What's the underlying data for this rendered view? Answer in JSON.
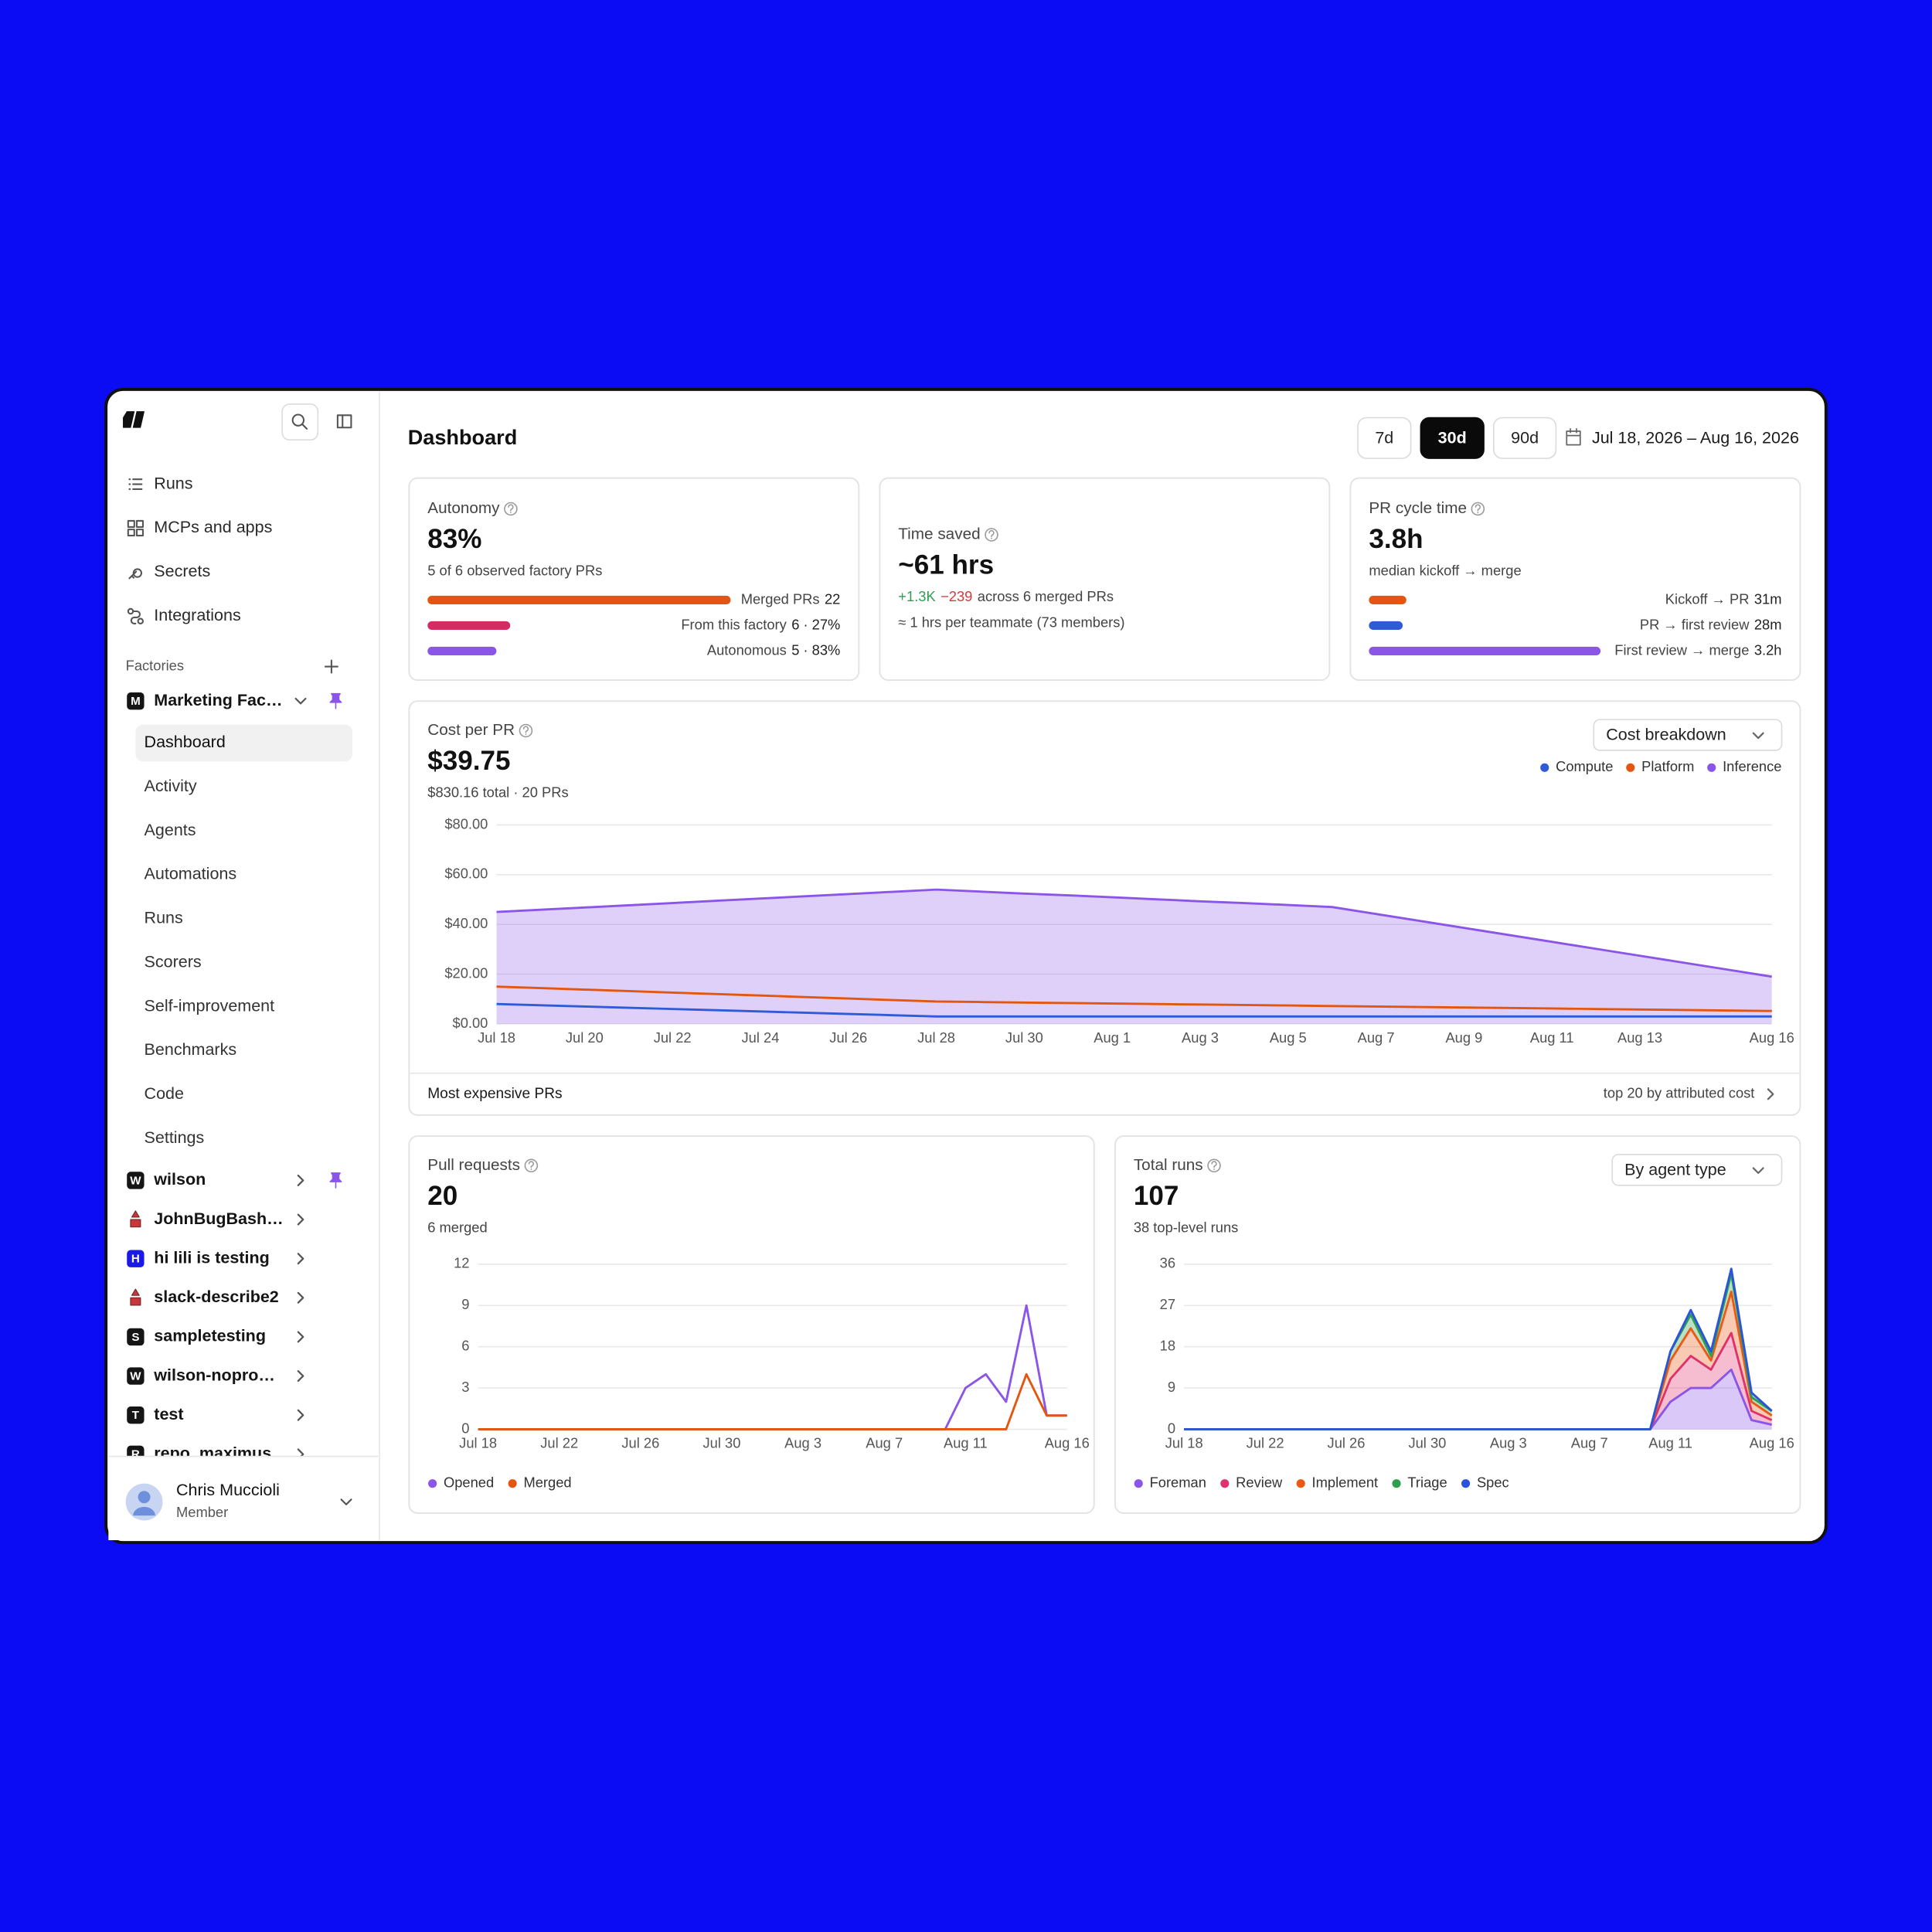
{
  "sidebar": {
    "nav": [
      "Runs",
      "MCPs and apps",
      "Secrets",
      "Integrations"
    ],
    "section": "Factories",
    "factories": [
      {
        "name": "Marketing Fac…",
        "badge": "M",
        "pinned": true,
        "expanded": true,
        "items": [
          "Dashboard",
          "Activity",
          "Agents",
          "Automations",
          "Runs",
          "Scorers",
          "Self-improvement",
          "Benchmarks",
          "Code",
          "Settings"
        ],
        "active_item": 0
      },
      {
        "name": "wilson",
        "badge": "W",
        "pinned": true
      },
      {
        "name": "JohnBugBash…"
      },
      {
        "name": "hi lili is testing",
        "badge": "H",
        "badge_color": "#1a1ae6"
      },
      {
        "name": "slack-describe2"
      },
      {
        "name": "sampletesting",
        "badge": "S"
      },
      {
        "name": "wilson-nopro…",
        "badge": "W"
      },
      {
        "name": "test",
        "badge": "T"
      },
      {
        "name": "repo_maximus",
        "badge": "R"
      }
    ],
    "user": {
      "name": "Chris Muccioli",
      "role": "Member"
    }
  },
  "header": {
    "title": "Dashboard",
    "ranges": [
      "7d",
      "30d",
      "90d"
    ],
    "active_range": 1,
    "date_range": "Jul 18, 2026 – Aug 16, 2026"
  },
  "cards": [
    {
      "title": "Autonomy",
      "value": "83%",
      "subtitle": "5 of 6 observed factory PRs",
      "bars": [
        {
          "label": "Merged PRs",
          "value": 22,
          "color": "#e4560f"
        },
        {
          "label": "From this factory",
          "value": 6,
          "value_label": "6 · 27%",
          "color": "#d62b62"
        },
        {
          "label": "Autonomous",
          "value": 5,
          "value_label": "5 · 83%",
          "color": "#8b55e8"
        }
      ]
    },
    {
      "title": "Time saved",
      "value": "~61 hrs",
      "delta_up": "+1.3K",
      "delta_down": "−239",
      "detail": "across 6 merged PRs",
      "note": "≈ 1 hrs per teammate (73 members)"
    },
    {
      "title": "PR cycle time",
      "value": "3.8h",
      "subtitle": "median kickoff → merge",
      "bars": [
        {
          "label": "Kickoff → PR",
          "value": 31,
          "value_label": "31m",
          "color": "#e4560f"
        },
        {
          "label": "PR → first review",
          "value": 28,
          "value_label": "28m",
          "color": "#2f5bd9"
        },
        {
          "label": "First review → merge",
          "value": 192,
          "value_label": "3.2h",
          "color": "#8b55e8"
        }
      ]
    }
  ],
  "chart_data": [
    {
      "type": "area",
      "title": "Cost per PR",
      "value": "$39.75",
      "subtitle": "$830.16 total · 20 PRs",
      "control": "Cost breakdown",
      "legend": "top-right",
      "grid": true,
      "categories": [
        "Jul 18",
        null,
        "Jul 20",
        null,
        "Jul 22",
        null,
        "Jul 24",
        null,
        "Jul 26",
        null,
        "Jul 28",
        null,
        "Jul 30",
        null,
        "Aug 1",
        null,
        "Aug 3",
        null,
        "Aug 5",
        null,
        "Aug 7",
        null,
        "Aug 9",
        null,
        "Aug 11",
        null,
        "Aug 13",
        null,
        null,
        "Aug 16"
      ],
      "series": [
        {
          "name": "Compute",
          "color": "#2f5bd9",
          "values": [
            8,
            7.5,
            7,
            6.5,
            6,
            5.5,
            5,
            4.5,
            4,
            3.5,
            3,
            3,
            3,
            3,
            3,
            3,
            3,
            3,
            3,
            3,
            3,
            3,
            3,
            3,
            3,
            3,
            3,
            3,
            3,
            3
          ]
        },
        {
          "name": "Platform",
          "color": "#e4560f",
          "values": [
            15,
            14.4,
            13.8,
            13.2,
            12.6,
            12,
            11.4,
            10.8,
            10.2,
            9.6,
            9,
            8.8,
            8.6,
            8.4,
            8.2,
            8,
            7.8,
            7.6,
            7.4,
            7.2,
            7,
            6.8,
            6.6,
            6.4,
            6.2,
            6,
            5.8,
            5.6,
            5.4,
            5.2
          ]
        },
        {
          "name": "Inference",
          "color": "#8b55e8",
          "values": [
            45,
            45.9,
            46.8,
            47.7,
            48.6,
            49.5,
            50.4,
            51.3,
            52.2,
            53.1,
            54,
            53.2,
            52.4,
            51.7,
            50.9,
            50.1,
            49.3,
            48.6,
            47.8,
            47,
            44.2,
            41.4,
            38.6,
            35.8,
            33,
            30.2,
            27.4,
            24.6,
            21.8,
            19
          ]
        }
      ],
      "ylim": [
        0,
        80
      ],
      "yticks": [
        {
          "value": 0,
          "label": "$0.00"
        },
        {
          "value": 20,
          "label": "$20.00"
        },
        {
          "value": 40,
          "label": "$40.00"
        },
        {
          "value": 60,
          "label": "$60.00"
        },
        {
          "value": 80,
          "label": "$80.00"
        }
      ],
      "footer": {
        "title": "Most expensive PRs",
        "link": "top 20 by attributed cost"
      }
    },
    {
      "type": "line",
      "title": "Pull requests",
      "value": "20",
      "subtitle": "6 merged",
      "legend": "bottom",
      "grid": true,
      "categories": [
        "Jul 18",
        null,
        null,
        null,
        "Jul 22",
        null,
        null,
        null,
        "Jul 26",
        null,
        null,
        null,
        "Jul 30",
        null,
        null,
        null,
        "Aug 3",
        null,
        null,
        null,
        "Aug 7",
        null,
        null,
        null,
        "Aug 11",
        null,
        null,
        null,
        null,
        "Aug 16"
      ],
      "series": [
        {
          "name": "Opened",
          "color": "#8b55e8",
          "values": [
            0,
            0,
            0,
            0,
            0,
            0,
            0,
            0,
            0,
            0,
            0,
            0,
            0,
            0,
            0,
            0,
            0,
            0,
            0,
            0,
            0,
            0,
            0,
            0,
            3,
            4,
            2,
            9,
            1,
            1
          ]
        },
        {
          "name": "Merged",
          "color": "#e4560f",
          "values": [
            0,
            0,
            0,
            0,
            0,
            0,
            0,
            0,
            0,
            0,
            0,
            0,
            0,
            0,
            0,
            0,
            0,
            0,
            0,
            0,
            0,
            0,
            0,
            0,
            0,
            0,
            0,
            4,
            1,
            1
          ]
        }
      ],
      "ylim": [
        0,
        12
      ],
      "yticks": [
        0,
        3,
        6,
        9,
        12
      ]
    },
    {
      "type": "area",
      "stacked": true,
      "title": "Total runs",
      "value": "107",
      "subtitle": "38 top-level runs",
      "control": "By agent type",
      "legend": "bottom",
      "grid": true,
      "categories": [
        "Jul 18",
        null,
        null,
        null,
        "Jul 22",
        null,
        null,
        null,
        "Jul 26",
        null,
        null,
        null,
        "Jul 30",
        null,
        null,
        null,
        "Aug 3",
        null,
        null,
        null,
        "Aug 7",
        null,
        null,
        null,
        "Aug 11",
        null,
        null,
        null,
        null,
        "Aug 16"
      ],
      "series": [
        {
          "name": "Foreman",
          "color": "#8b55e8",
          "values": [
            0,
            0,
            0,
            0,
            0,
            0,
            0,
            0,
            0,
            0,
            0,
            0,
            0,
            0,
            0,
            0,
            0,
            0,
            0,
            0,
            0,
            0,
            0,
            0,
            6,
            9,
            9,
            13,
            2,
            1
          ]
        },
        {
          "name": "Review",
          "color": "#e0326a",
          "values": [
            0,
            0,
            0,
            0,
            0,
            0,
            0,
            0,
            0,
            0,
            0,
            0,
            0,
            0,
            0,
            0,
            0,
            0,
            0,
            0,
            0,
            0,
            0,
            0,
            5,
            7,
            4,
            8,
            2,
            1
          ]
        },
        {
          "name": "Implement",
          "color": "#ea5a14",
          "values": [
            0,
            0,
            0,
            0,
            0,
            0,
            0,
            0,
            0,
            0,
            0,
            0,
            0,
            0,
            0,
            0,
            0,
            0,
            0,
            0,
            0,
            0,
            0,
            0,
            4,
            6,
            2,
            9,
            2,
            1
          ]
        },
        {
          "name": "Triage",
          "color": "#2e9e4f",
          "values": [
            0,
            0,
            0,
            0,
            0,
            0,
            0,
            0,
            0,
            0,
            0,
            0,
            0,
            0,
            0,
            0,
            0,
            0,
            0,
            0,
            0,
            0,
            0,
            0,
            2,
            3,
            1,
            4,
            1,
            1
          ]
        },
        {
          "name": "Spec",
          "color": "#2a55d8",
          "values": [
            0,
            0,
            0,
            0,
            0,
            0,
            0,
            0,
            0,
            0,
            0,
            0,
            0,
            0,
            0,
            0,
            0,
            0,
            0,
            0,
            0,
            0,
            0,
            0,
            0,
            1,
            1,
            1,
            1,
            0
          ]
        }
      ],
      "ylim": [
        0,
        36
      ],
      "yticks": [
        0,
        9,
        18,
        27,
        36
      ]
    }
  ]
}
